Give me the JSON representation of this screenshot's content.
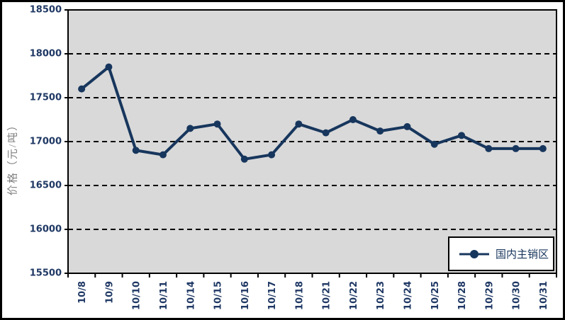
{
  "chart_data": {
    "type": "line",
    "title": "",
    "ylabel": "价格（元/吨）",
    "xlabel": "",
    "ylim": [
      15500,
      18500
    ],
    "ytick_step": 500,
    "grid": "horizontal-dashed",
    "legend_position": "bottom-right-inside-plot",
    "categories": [
      "10/8",
      "10/9",
      "10/10",
      "10/11",
      "10/14",
      "10/15",
      "10/16",
      "10/17",
      "10/18",
      "10/21",
      "10/22",
      "10/23",
      "10/24",
      "10/25",
      "10/28",
      "10/29",
      "10/30",
      "10/31"
    ],
    "series": [
      {
        "name": "国内主销区",
        "values": [
          17600,
          17850,
          16900,
          16850,
          17150,
          17200,
          16800,
          16850,
          17200,
          17100,
          17250,
          17120,
          17170,
          16970,
          17070,
          16920,
          16920,
          16920
        ]
      }
    ],
    "colors": {
      "line": "#17365D",
      "plot_background": "#D9D9D9",
      "gridline": "#000000",
      "axis_text": "#1F3864",
      "axis_title_text": "#808080",
      "plot_border": "#000000",
      "figure_border": "#000000",
      "legend_border": "#000000",
      "legend_background": "#FFFFFF"
    }
  }
}
